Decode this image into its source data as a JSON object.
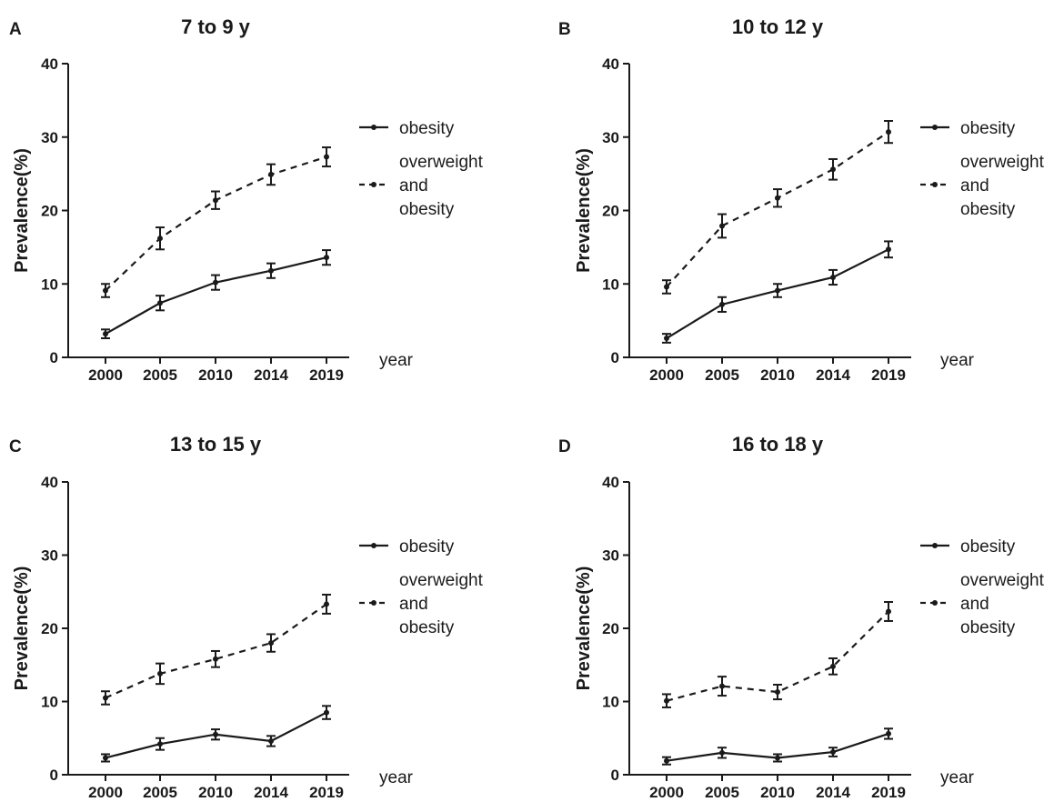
{
  "figure": {
    "colors": {
      "line": "#1a1a1a",
      "background": "#ffffff"
    }
  },
  "chart_data": [
    {
      "type": "line",
      "panel_letter": "A",
      "title": "7 to 9 y",
      "xlabel": "year",
      "ylabel": "Prevalence(%)",
      "ylim": [
        0,
        40
      ],
      "yticks": [
        "0",
        "10",
        "20",
        "30",
        "40"
      ],
      "categories": [
        "2000",
        "2005",
        "2010",
        "2014",
        "2019"
      ],
      "legend": [
        "obesity",
        "overweight",
        "and",
        "obesity"
      ],
      "legend_position": "right",
      "series": [
        {
          "name": "obesity",
          "style": "solid",
          "values": [
            3.2,
            7.4,
            10.2,
            11.8,
            13.6
          ],
          "errors": [
            0.6,
            1.0,
            1.0,
            1.0,
            1.0
          ]
        },
        {
          "name": "overweight and obesity",
          "style": "dashed",
          "values": [
            9.1,
            16.2,
            21.4,
            24.9,
            27.3
          ],
          "errors": [
            0.9,
            1.5,
            1.2,
            1.4,
            1.3
          ]
        }
      ]
    },
    {
      "type": "line",
      "panel_letter": "B",
      "title": "10 to 12 y",
      "xlabel": "year",
      "ylabel": "Prevalence(%)",
      "ylim": [
        0,
        40
      ],
      "yticks": [
        "0",
        "10",
        "20",
        "30",
        "40"
      ],
      "categories": [
        "2000",
        "2005",
        "2010",
        "2014",
        "2019"
      ],
      "legend": [
        "obesity",
        "overweight",
        "and",
        "obesity"
      ],
      "legend_position": "right",
      "series": [
        {
          "name": "obesity",
          "style": "solid",
          "values": [
            2.6,
            7.2,
            9.1,
            10.9,
            14.7
          ],
          "errors": [
            0.6,
            1.0,
            0.9,
            1.0,
            1.1
          ]
        },
        {
          "name": "overweight and obesity",
          "style": "dashed",
          "values": [
            9.6,
            17.9,
            21.7,
            25.6,
            30.7
          ],
          "errors": [
            0.9,
            1.6,
            1.2,
            1.4,
            1.5
          ]
        }
      ]
    },
    {
      "type": "line",
      "panel_letter": "C",
      "title": "13 to 15 y",
      "xlabel": "year",
      "ylabel": "Prevalence(%)",
      "ylim": [
        0,
        40
      ],
      "yticks": [
        "0",
        "10",
        "20",
        "30",
        "40"
      ],
      "categories": [
        "2000",
        "2005",
        "2010",
        "2014",
        "2019"
      ],
      "legend": [
        "obesity",
        "overweight",
        "and",
        "obesity"
      ],
      "legend_position": "right",
      "series": [
        {
          "name": "obesity",
          "style": "solid",
          "values": [
            2.3,
            4.2,
            5.5,
            4.6,
            8.5
          ],
          "errors": [
            0.5,
            0.8,
            0.7,
            0.7,
            0.9
          ]
        },
        {
          "name": "overweight and obesity",
          "style": "dashed",
          "values": [
            10.5,
            13.8,
            15.8,
            18.0,
            23.3
          ],
          "errors": [
            0.9,
            1.4,
            1.1,
            1.2,
            1.3
          ]
        }
      ]
    },
    {
      "type": "line",
      "panel_letter": "D",
      "title": "16 to 18 y",
      "xlabel": "year",
      "ylabel": "Prevalence(%)",
      "ylim": [
        0,
        40
      ],
      "yticks": [
        "0",
        "10",
        "20",
        "30",
        "40"
      ],
      "categories": [
        "2000",
        "2005",
        "2010",
        "2014",
        "2019"
      ],
      "legend": [
        "obesity",
        "overweight",
        "and",
        "obesity"
      ],
      "legend_position": "right",
      "series": [
        {
          "name": "obesity",
          "style": "solid",
          "values": [
            1.9,
            3.0,
            2.3,
            3.1,
            5.6
          ],
          "errors": [
            0.5,
            0.7,
            0.5,
            0.6,
            0.7
          ]
        },
        {
          "name": "overweight and obesity",
          "style": "dashed",
          "values": [
            10.1,
            12.1,
            11.3,
            14.8,
            22.3
          ],
          "errors": [
            0.9,
            1.3,
            1.0,
            1.1,
            1.3
          ]
        }
      ]
    }
  ]
}
